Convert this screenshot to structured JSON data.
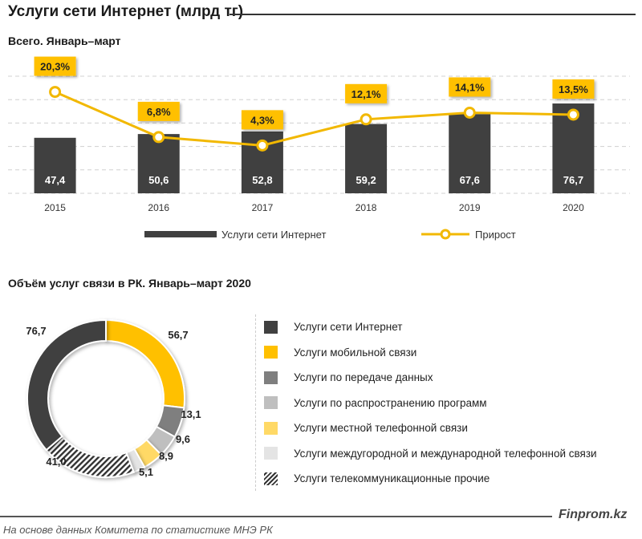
{
  "header": {
    "title": "Услуги сети Интернет (млрд тг)"
  },
  "colors": {
    "dark": "#404040",
    "yellow": "#FFC000",
    "line": "#F2B800",
    "data": "#7F7F7F",
    "programs": "#BFBFBF",
    "local": "#FFD966",
    "intl": "#E4E4E4"
  },
  "chart_data": [
    {
      "type": "bar+line",
      "title": "Всего. Январь–март",
      "categories": [
        "2015",
        "2016",
        "2017",
        "2018",
        "2019",
        "2020"
      ],
      "series": [
        {
          "name": "Услуги сети Интернет",
          "type": "bar",
          "values": [
            47.4,
            50.6,
            52.8,
            59.2,
            67.6,
            76.7
          ],
          "labels": [
            "47,4",
            "50,6",
            "52,8",
            "59,2",
            "67,6",
            "76,7"
          ]
        },
        {
          "name": "Прирост",
          "type": "line",
          "axis": "secondary",
          "values": [
            20.3,
            6.8,
            4.3,
            12.1,
            14.1,
            13.5
          ],
          "labels": [
            "20,3%",
            "6,8%",
            "4,3%",
            "12,1%",
            "14,1%",
            "13,5%"
          ]
        }
      ],
      "ylim": [
        0,
        100
      ],
      "y2lim": [
        -10,
        25
      ],
      "grid": true,
      "legend": "bottom"
    },
    {
      "type": "pie",
      "donut": true,
      "title": "Объём услуг связи в РК. Январь–март  2020",
      "slices": [
        {
          "name": "Услуги мобильной связи",
          "value": 56.7,
          "label": "56,7",
          "color": "#FFC000"
        },
        {
          "name": "Услуги по передаче данных",
          "value": 13.1,
          "label": "13,1",
          "color": "#7F7F7F"
        },
        {
          "name": "Услуги по распространению программ",
          "value": 9.6,
          "label": "9,6",
          "color": "#BFBFBF"
        },
        {
          "name": "Услуги местной телефонной связи",
          "value": 8.9,
          "label": "8,9",
          "color": "#FFD966"
        },
        {
          "name": "Услуги междугородной и международной телефонной связи",
          "value": 5.1,
          "label": "5,1",
          "color": "#E4E4E4"
        },
        {
          "name": "Услуги телекоммуникационные прочие",
          "value": 41.0,
          "label": "41,0",
          "color": "hatch"
        },
        {
          "name": "Услуги сети Интернет",
          "value": 76.7,
          "label": "76,7",
          "color": "#404040"
        }
      ],
      "legend": [
        {
          "label": "Услуги сети Интернет",
          "color": "#404040"
        },
        {
          "label": "Услуги мобильной связи",
          "color": "#FFC000"
        },
        {
          "label": "Услуги по передаче данных",
          "color": "#7F7F7F"
        },
        {
          "label": "Услуги по распространению программ",
          "color": "#BFBFBF"
        },
        {
          "label": "Услуги местной телефонной связи",
          "color": "#FFD966"
        },
        {
          "label": "Услуги междугородной и международной телефонной связи",
          "color": "#E4E4E4"
        },
        {
          "label": "Услуги телекоммуникационные прочие",
          "color": "hatch"
        }
      ],
      "legend_position": "right"
    }
  ],
  "footer": {
    "brand": "Finprom.kz",
    "source": "На основе данных  Комитета по статистике МНЭ РК"
  }
}
